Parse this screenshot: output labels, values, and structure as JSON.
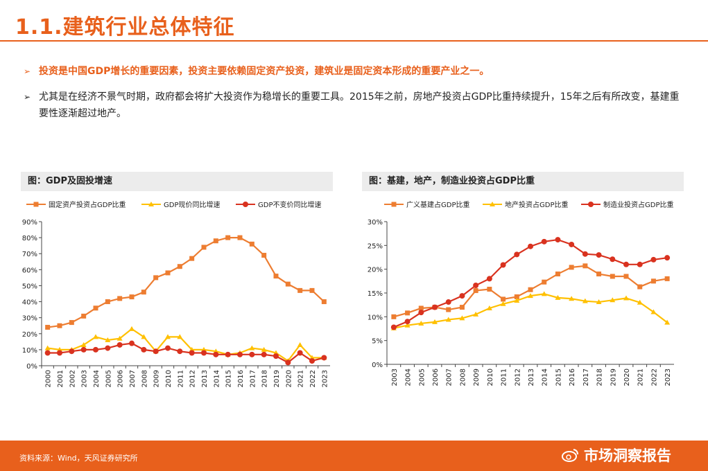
{
  "page": {
    "title": "1.1.建筑行业总体特征",
    "bullets": [
      "投资是中国GDP增长的重要因素，投资主要依赖固定资产投资，建筑业是固定资本形成的重要产业之一。",
      "尤其是在经济不景气时期，政府都会将扩大投资作为稳增长的重要工具。2015年之前，房地产投资占GDP比重持续提升，15年之后有所改变，基建重要性逐渐超过地产。"
    ],
    "bullet_glyph": "➢",
    "source": "资料来源：Wind，天风证券研究所",
    "watermark": "市场洞察报告",
    "colors": {
      "accent": "#e8601c",
      "header_bg": "#ececec"
    }
  },
  "chart_data": [
    {
      "type": "line",
      "title": "图：GDP及固投增速",
      "x": [
        "2000",
        "2001",
        "2002",
        "2003",
        "2004",
        "2005",
        "2006",
        "2007",
        "2008",
        "2009",
        "2010",
        "2011",
        "2012",
        "2013",
        "2014",
        "2015",
        "2016",
        "2017",
        "2018",
        "2019",
        "2020",
        "2021",
        "2022",
        "2023"
      ],
      "ylim": [
        0,
        90
      ],
      "yticks": [
        "0%",
        "10%",
        "20%",
        "30%",
        "40%",
        "50%",
        "60%",
        "70%",
        "80%",
        "90%"
      ],
      "grid": false,
      "legend": "top",
      "series": [
        {
          "name": "固定资产投资占GDP比重",
          "color": "#ed7d31",
          "marker": "square",
          "values": [
            24,
            25,
            27,
            31,
            36,
            40,
            42,
            43,
            46,
            55,
            58,
            62,
            67,
            74,
            78,
            80,
            80,
            76,
            69,
            56,
            51,
            47,
            47,
            40
          ]
        },
        {
          "name": "GDP现价同比增速",
          "color": "#ffc000",
          "marker": "triangle",
          "values": [
            11,
            10,
            10,
            13,
            18,
            16,
            17,
            23,
            18,
            9,
            18,
            18,
            10,
            10,
            9,
            7,
            8,
            11,
            10,
            8,
            3,
            13,
            5,
            5
          ]
        },
        {
          "name": "GDP不变价同比增速",
          "color": "#d9321f",
          "marker": "circle",
          "values": [
            8,
            8,
            9,
            10,
            10,
            11,
            13,
            14,
            10,
            9,
            11,
            9,
            8,
            8,
            7,
            7,
            7,
            7,
            7,
            6,
            2,
            8,
            3,
            5
          ]
        }
      ]
    },
    {
      "type": "line",
      "title": "图：基建，地产，制造业投资占GDP比重",
      "x": [
        "2003",
        "2004",
        "2005",
        "2006",
        "2007",
        "2008",
        "2009",
        "2010",
        "2011",
        "2012",
        "2013",
        "2014",
        "2015",
        "2016",
        "2017",
        "2018",
        "2019",
        "2020",
        "2021",
        "2022",
        "2023"
      ],
      "ylim": [
        0,
        30
      ],
      "yticks": [
        "0%",
        "5%",
        "10%",
        "15%",
        "20%",
        "25%",
        "30%"
      ],
      "grid": false,
      "legend": "top",
      "series": [
        {
          "name": "广义基建占GDP比重",
          "color": "#ed7d31",
          "marker": "square",
          "values": [
            10,
            10.8,
            11.8,
            12,
            11.5,
            12,
            15.5,
            15.8,
            13.7,
            14.2,
            15.7,
            17.3,
            19,
            20.4,
            20.7,
            19,
            18.5,
            18.5,
            16.3,
            17.5,
            18
          ]
        },
        {
          "name": "地产投资占GDP比重",
          "color": "#ffc000",
          "marker": "triangle",
          "values": [
            7.6,
            8.2,
            8.6,
            8.9,
            9.4,
            9.7,
            10.5,
            11.8,
            12.7,
            13.4,
            14.4,
            14.8,
            14,
            13.8,
            13.3,
            13.1,
            13.5,
            13.9,
            13,
            11,
            8.8
          ]
        },
        {
          "name": "制造业投资占GDP比重",
          "color": "#d9321f",
          "marker": "circle",
          "values": [
            7.8,
            9,
            10.9,
            12,
            13.1,
            14.4,
            16.6,
            18,
            20.9,
            23.1,
            24.8,
            25.8,
            26.2,
            25.2,
            23.2,
            23,
            22.1,
            21,
            21,
            22,
            22.4
          ]
        }
      ]
    }
  ]
}
